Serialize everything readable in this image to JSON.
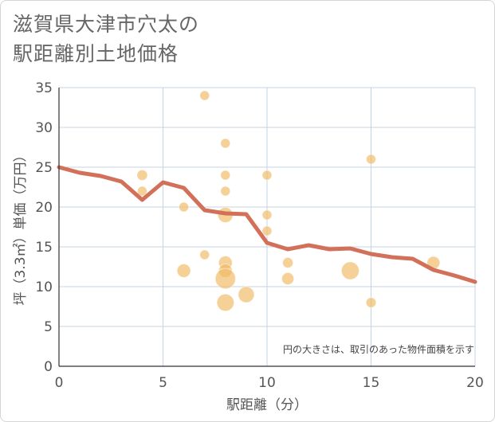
{
  "title_lines": [
    "滋賀県大津市穴太の",
    "駅距離別土地価格"
  ],
  "chart_data": {
    "type": "scatter",
    "xlabel": "駅距離（分）",
    "ylabel": "坪（3.3㎡）単価（万円）",
    "xlim": [
      0,
      20
    ],
    "ylim": [
      0,
      35
    ],
    "x_ticks": [
      0,
      5,
      10,
      15,
      20
    ],
    "y_ticks": [
      0,
      5,
      10,
      15,
      20,
      25,
      30,
      35
    ],
    "grid": true,
    "note": "円の大きさは、取引のあった物件面積を示す",
    "colors": {
      "bubble": "#f0b961",
      "line": "#d2705a",
      "grid": "#c5d3e3",
      "text": "#555555"
    },
    "points": [
      {
        "x": 4,
        "y": 24,
        "size": 1.2
      },
      {
        "x": 4,
        "y": 22,
        "size": 1
      },
      {
        "x": 6,
        "y": 20,
        "size": 1
      },
      {
        "x": 6,
        "y": 12,
        "size": 2
      },
      {
        "x": 7,
        "y": 34,
        "size": 1
      },
      {
        "x": 7,
        "y": 14,
        "size": 1
      },
      {
        "x": 8,
        "y": 28,
        "size": 1
      },
      {
        "x": 8,
        "y": 24,
        "size": 1
      },
      {
        "x": 8,
        "y": 22,
        "size": 1
      },
      {
        "x": 8,
        "y": 19,
        "size": 2.5
      },
      {
        "x": 8,
        "y": 13,
        "size": 2
      },
      {
        "x": 8,
        "y": 12,
        "size": 2
      },
      {
        "x": 8,
        "y": 11,
        "size": 4.5
      },
      {
        "x": 8,
        "y": 8,
        "size": 3.2
      },
      {
        "x": 9,
        "y": 9,
        "size": 2.8
      },
      {
        "x": 10,
        "y": 24,
        "size": 1
      },
      {
        "x": 10,
        "y": 19,
        "size": 1
      },
      {
        "x": 10,
        "y": 17,
        "size": 1
      },
      {
        "x": 11,
        "y": 13,
        "size": 1.2
      },
      {
        "x": 11,
        "y": 11,
        "size": 1.6
      },
      {
        "x": 14,
        "y": 12,
        "size": 3.4
      },
      {
        "x": 15,
        "y": 26,
        "size": 1
      },
      {
        "x": 15,
        "y": 8,
        "size": 1.1
      },
      {
        "x": 18,
        "y": 13,
        "size": 1.8
      }
    ],
    "trend": {
      "x": [
        0,
        1,
        2,
        3,
        4,
        5,
        6,
        7,
        8,
        9,
        10,
        11,
        12,
        13,
        14,
        15,
        16,
        17,
        18,
        19,
        20
      ],
      "y": [
        25,
        24.3,
        23.9,
        23.2,
        20.9,
        23.1,
        22.4,
        19.6,
        19.2,
        19.1,
        15.5,
        14.7,
        15.2,
        14.7,
        14.8,
        14.1,
        13.7,
        13.5,
        12.1,
        11.4,
        10.6
      ]
    }
  }
}
